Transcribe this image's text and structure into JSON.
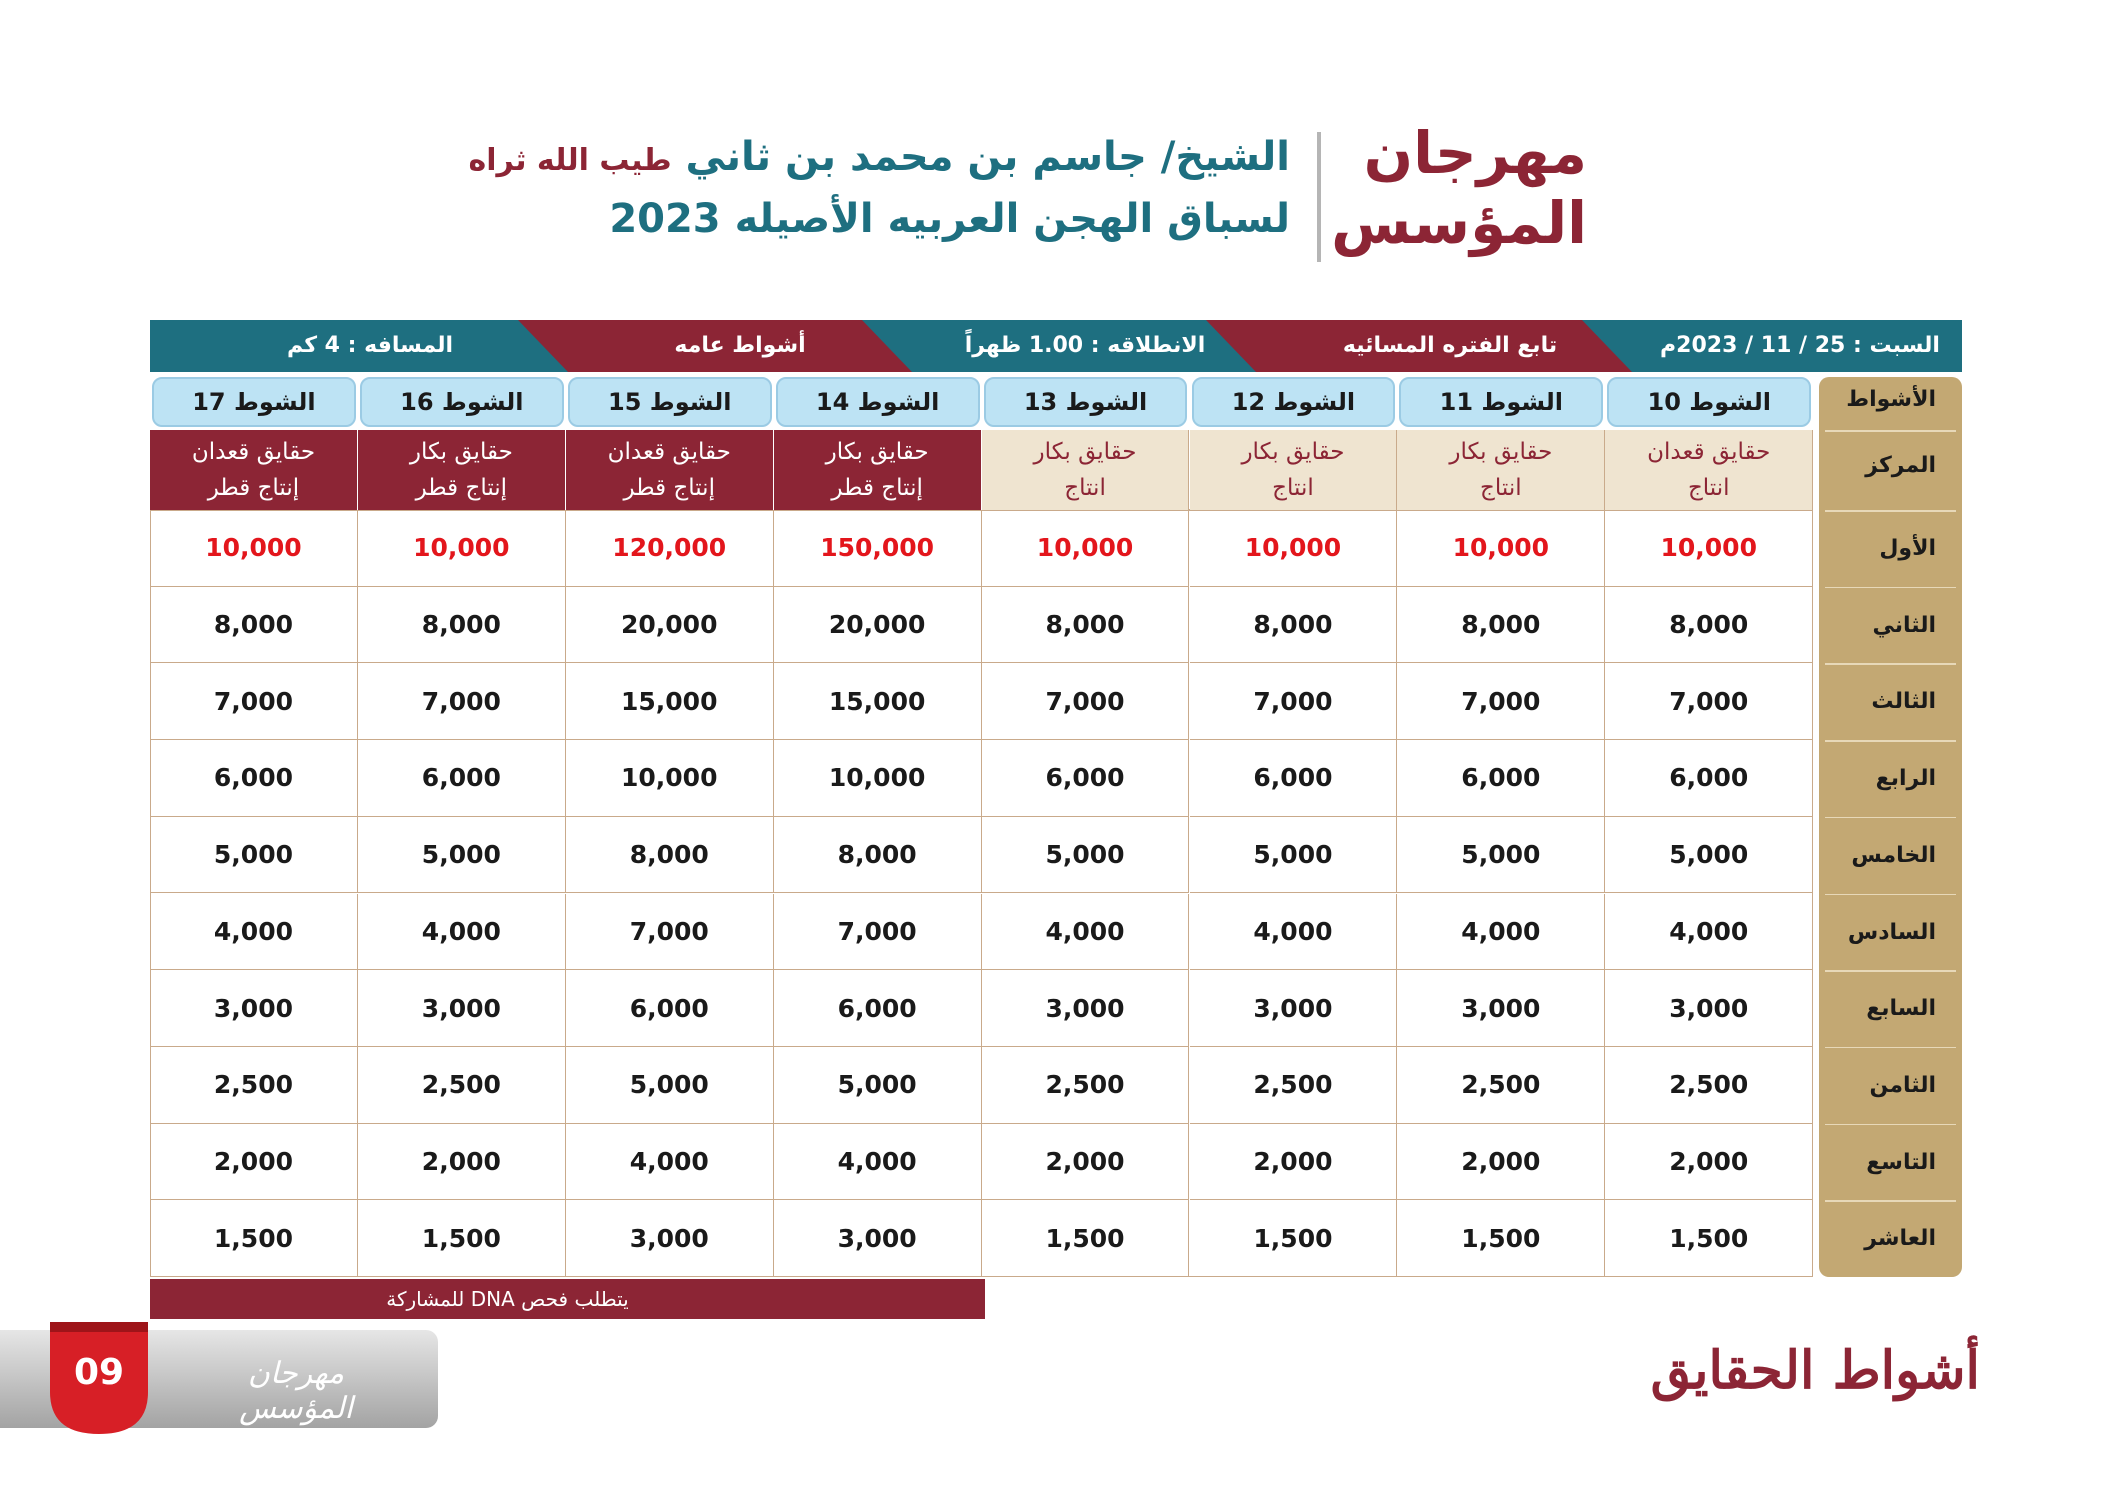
{
  "header": {
    "festival_title": "مهرجان المؤسس",
    "line1": "الشيخ/ جاسم بن محمد بن ثاني",
    "line1_honor": "طيب الله ثراه",
    "line2": "لسباق الهجن العربيه الأصيله 2023"
  },
  "banner": {
    "date": "السبت : 25 / 11 / 2023م",
    "period": "تابع الفتره المسائيه",
    "start_time": "الانطلاقه : 1.00 ظهراً",
    "category": "أشواط عامه",
    "distance": "المسافه : 4 كم"
  },
  "table": {
    "row_header_label": "الأشواط",
    "center_label": "المركز",
    "rounds": [
      {
        "name": "الشوط 10",
        "center_line1": "حقايق قعدان",
        "center_line2": "انتاج"
      },
      {
        "name": "الشوط 11",
        "center_line1": "حقايق بكار",
        "center_line2": "انتاج"
      },
      {
        "name": "الشوط 12",
        "center_line1": "حقايق بكار",
        "center_line2": "انتاج"
      },
      {
        "name": "الشوط 13",
        "center_line1": "حقايق بكار",
        "center_line2": "انتاج"
      },
      {
        "name": "الشوط 14",
        "center_line1": "حقايق بكار",
        "center_line2": "إنتاج قطر"
      },
      {
        "name": "الشوط 15",
        "center_line1": "حقايق قعدان",
        "center_line2": "إنتاج قطر"
      },
      {
        "name": "الشوط 16",
        "center_line1": "حقايق بكار",
        "center_line2": "إنتاج قطر"
      },
      {
        "name": "الشوط 17",
        "center_line1": "حقايق قعدان",
        "center_line2": "إنتاج قطر"
      }
    ],
    "places": [
      "الأول",
      "الثاني",
      "الثالث",
      "الرابع",
      "الخامس",
      "السادس",
      "السابع",
      "الثامن",
      "التاسع",
      "العاشر"
    ],
    "prizes": [
      [
        "10,000",
        "10,000",
        "10,000",
        "10,000",
        "150,000",
        "120,000",
        "10,000",
        "10,000"
      ],
      [
        "8,000",
        "8,000",
        "8,000",
        "8,000",
        "20,000",
        "20,000",
        "8,000",
        "8,000"
      ],
      [
        "7,000",
        "7,000",
        "7,000",
        "7,000",
        "15,000",
        "15,000",
        "7,000",
        "7,000"
      ],
      [
        "6,000",
        "6,000",
        "6,000",
        "6,000",
        "10,000",
        "10,000",
        "6,000",
        "6,000"
      ],
      [
        "5,000",
        "5,000",
        "5,000",
        "5,000",
        "8,000",
        "8,000",
        "5,000",
        "5,000"
      ],
      [
        "4,000",
        "4,000",
        "4,000",
        "4,000",
        "7,000",
        "7,000",
        "4,000",
        "4,000"
      ],
      [
        "3,000",
        "3,000",
        "3,000",
        "3,000",
        "6,000",
        "6,000",
        "3,000",
        "3,000"
      ],
      [
        "2,500",
        "2,500",
        "2,500",
        "2,500",
        "5,000",
        "5,000",
        "2,500",
        "2,500"
      ],
      [
        "2,000",
        "2,000",
        "2,000",
        "2,000",
        "4,000",
        "4,000",
        "2,000",
        "2,000"
      ],
      [
        "1,500",
        "1,500",
        "1,500",
        "1,500",
        "3,000",
        "3,000",
        "1,500",
        "1,500"
      ]
    ]
  },
  "note": "يتطلب فحص DNA للمشاركة",
  "footer": {
    "page_number": "09",
    "logo_text": "مهرجان المؤسس",
    "section_title": "أشواط الحقايق"
  },
  "colors": {
    "maroon": "#8c2535",
    "teal": "#1e6f80",
    "light_blue": "#bde3f4",
    "cream": "#efe4d0",
    "tan": "#c3a873",
    "first_place_red": "#e3161c",
    "badge_red": "#d71f26"
  }
}
